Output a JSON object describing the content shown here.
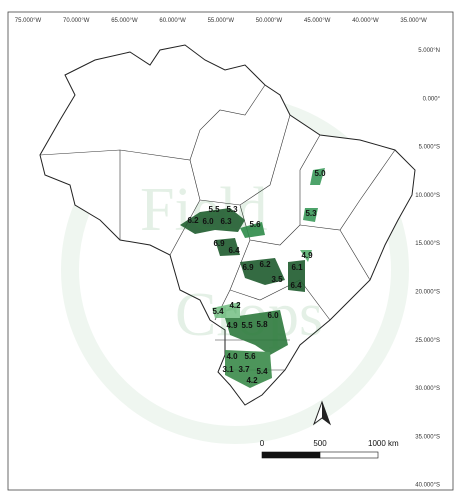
{
  "map": {
    "lon_labels": [
      "75.000°W",
      "70.000°W",
      "65.000°W",
      "60.000°W",
      "55.000°W",
      "50.000°W",
      "45.000°W",
      "40.000°W",
      "35.000°W"
    ],
    "lat_labels": [
      "5.000°N",
      "0.000°",
      "5.000°S",
      "10.000°S",
      "15.000°S",
      "20.000°S",
      "25.000°S",
      "30.000°S",
      "35.000°S",
      "40.000°S"
    ],
    "region_labels": [
      "5.5",
      "5.3",
      "6.2",
      "6.0",
      "6.3",
      "5.6",
      "6.9",
      "6.4",
      "5.0",
      "5.3",
      "4.9",
      "6.2",
      "6.9",
      "3.5",
      "6.1",
      "6.4",
      "4.2",
      "5.4",
      "6.0",
      "4.9",
      "5.5",
      "5.8",
      "4.0",
      "5.6",
      "3.1",
      "3.7",
      "5.4",
      "4.2"
    ],
    "scale_labels": [
      "0",
      "500",
      "1000 km"
    ],
    "watermark": [
      "Field",
      "Crops"
    ]
  }
}
